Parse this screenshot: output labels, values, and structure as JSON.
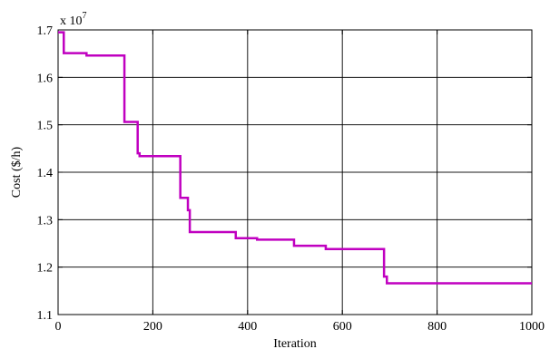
{
  "chart_data": {
    "type": "line",
    "xlabel": "Iteration",
    "ylabel": "Cost ($/h)",
    "y_multiplier_label": "x 10",
    "y_multiplier_exponent": "7",
    "xlim": [
      0,
      1000
    ],
    "ylim": [
      1.1,
      1.7
    ],
    "xticks": [
      0,
      200,
      400,
      600,
      800,
      1000
    ],
    "yticks": [
      1.1,
      1.2,
      1.3,
      1.4,
      1.5,
      1.6,
      1.7
    ],
    "xtick_labels": [
      "0",
      "200",
      "400",
      "600",
      "800",
      "1000"
    ],
    "ytick_labels": [
      "1.1",
      "1.2",
      "1.3",
      "1.4",
      "1.5",
      "1.6",
      "1.7"
    ],
    "grid": true,
    "line_color": "#c000c0",
    "series": [
      {
        "step": true,
        "x": [
          0,
          12,
          60,
          140,
          168,
          172,
          258,
          274,
          278,
          375,
          420,
          498,
          565,
          688,
          694,
          1000
        ],
        "y": [
          1.695,
          1.651,
          1.646,
          1.506,
          1.44,
          1.434,
          1.346,
          1.32,
          1.274,
          1.261,
          1.258,
          1.245,
          1.238,
          1.18,
          1.166,
          1.166
        ]
      }
    ]
  }
}
